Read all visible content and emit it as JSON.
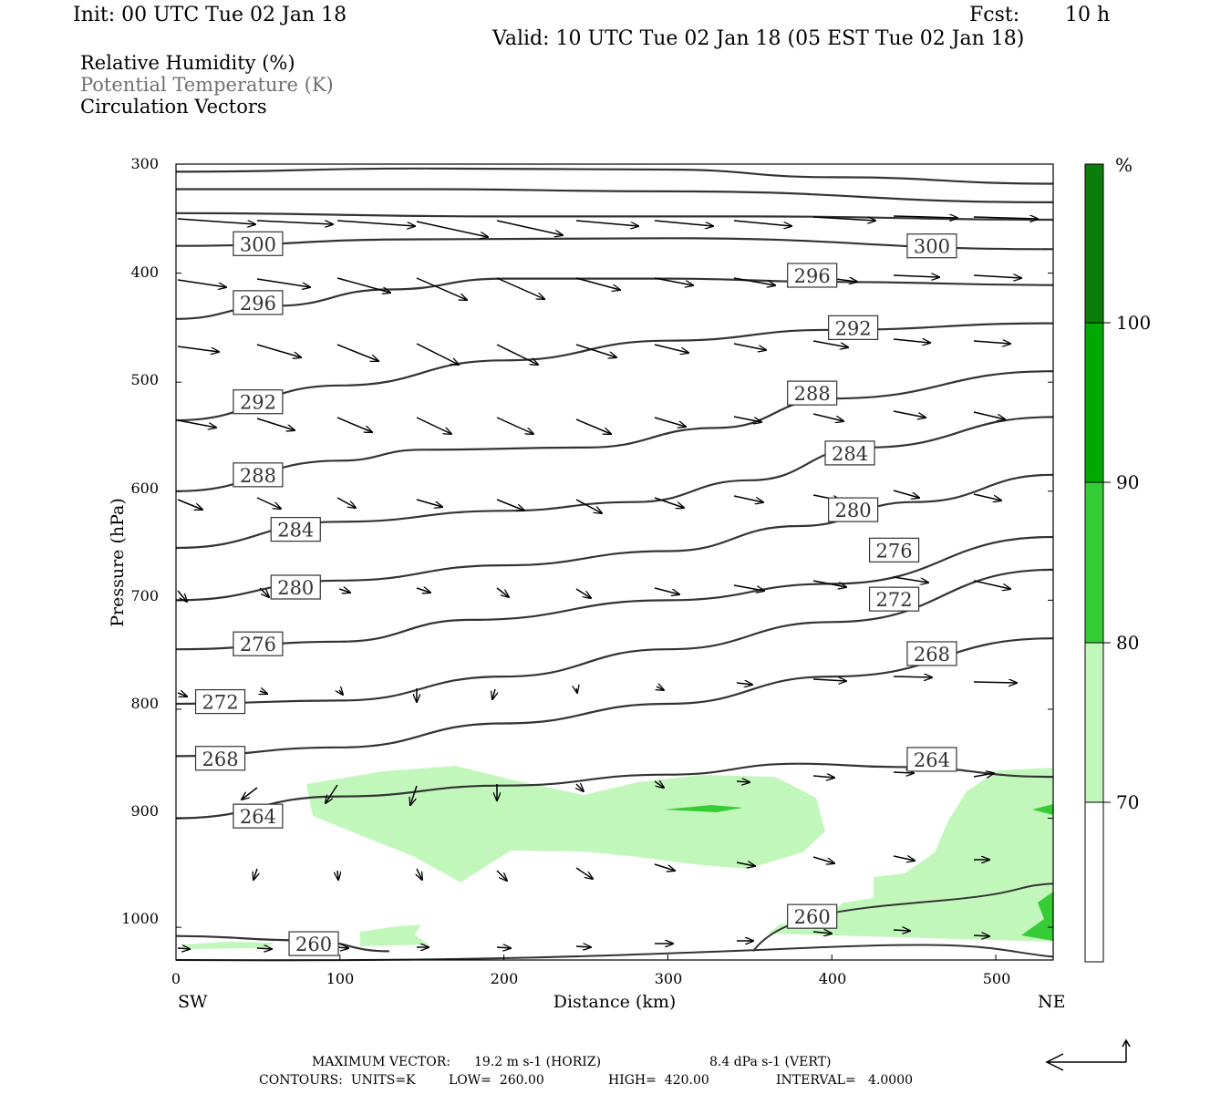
{
  "header": {
    "init": "Init: 00 UTC Tue 02 Jan 18",
    "fcst_label": "Fcst:",
    "fcst_value": "10 h",
    "valid": "Valid: 10 UTC Tue 02 Jan 18 (05 EST Tue 02 Jan 18)"
  },
  "legend": {
    "rh": "Relative Humidity (%)",
    "theta": "Potential Temperature (K)",
    "vectors": "Circulation Vectors"
  },
  "chart_data": {
    "type": "cross-section",
    "xlabel": "Distance (km)",
    "ylabel": "Pressure (hPa)",
    "xlim": [
      0,
      535
    ],
    "ylim": [
      1030,
      300
    ],
    "x_ticks": [
      0,
      100,
      200,
      300,
      400,
      500
    ],
    "y_ticks": [
      300,
      400,
      500,
      600,
      700,
      800,
      900,
      1000
    ],
    "x_end_labels": {
      "left": "SW",
      "right": "NE"
    },
    "theta_contours": [
      {
        "level": 304,
        "label": "",
        "points": [
          [
            0,
            307
          ],
          [
            150,
            304
          ],
          [
            300,
            305
          ],
          [
            400,
            312
          ],
          [
            535,
            318
          ]
        ]
      },
      {
        "level": 302,
        "label": "",
        "points": [
          [
            0,
            323
          ],
          [
            150,
            323
          ],
          [
            300,
            325
          ],
          [
            535,
            335
          ]
        ]
      },
      {
        "level": 300,
        "label": "300",
        "label_at": [
          50,
          373
        ],
        "label2_at": [
          461,
          375
        ],
        "points": [
          [
            0,
            375
          ],
          [
            150,
            369
          ],
          [
            300,
            368
          ],
          [
            535,
            378
          ]
        ]
      },
      {
        "level": 298,
        "label": "",
        "points": [
          [
            0,
            345
          ],
          [
            200,
            348
          ],
          [
            350,
            348
          ],
          [
            535,
            351
          ]
        ]
      },
      {
        "level": 296,
        "label": "296",
        "label_at": [
          50,
          427
        ],
        "label2_at": [
          388,
          402
        ],
        "points": [
          [
            0,
            442
          ],
          [
            60,
            430
          ],
          [
            130,
            415
          ],
          [
            200,
            405
          ],
          [
            300,
            405
          ],
          [
            400,
            408
          ],
          [
            535,
            411
          ]
        ]
      },
      {
        "level": 292,
        "label": "292",
        "label_at": [
          50,
          518
        ],
        "label2_at": [
          413,
          450
        ],
        "points": [
          [
            0,
            535
          ],
          [
            100,
            503
          ],
          [
            200,
            480
          ],
          [
            300,
            462
          ],
          [
            400,
            452
          ],
          [
            535,
            446
          ]
        ]
      },
      {
        "level": 288,
        "label": "288",
        "label_at": [
          50,
          585
        ],
        "label2_at": [
          388,
          510
        ],
        "points": [
          [
            0,
            600
          ],
          [
            100,
            572
          ],
          [
            150,
            562
          ],
          [
            250,
            560
          ],
          [
            330,
            542
          ],
          [
            400,
            515
          ],
          [
            535,
            490
          ]
        ]
      },
      {
        "level": 284,
        "label": "284",
        "label_at": [
          73,
          635
        ],
        "label2_at": [
          411,
          565
        ],
        "points": [
          [
            0,
            652
          ],
          [
            100,
            628
          ],
          [
            200,
            618
          ],
          [
            280,
            610
          ],
          [
            350,
            590
          ],
          [
            420,
            560
          ],
          [
            535,
            532
          ]
        ]
      },
      {
        "level": 280,
        "label": "280",
        "label_at": [
          73,
          688
        ],
        "label2_at": [
          413,
          617
        ],
        "points": [
          [
            0,
            700
          ],
          [
            100,
            682
          ],
          [
            200,
            668
          ],
          [
            300,
            655
          ],
          [
            380,
            632
          ],
          [
            450,
            610
          ],
          [
            535,
            585
          ]
        ]
      },
      {
        "level": 276,
        "label": "276",
        "label_at": [
          50,
          740
        ],
        "label2_at": [
          438,
          654
        ],
        "points": [
          [
            0,
            745
          ],
          [
            100,
            738
          ],
          [
            180,
            718
          ],
          [
            300,
            700
          ],
          [
            400,
            685
          ],
          [
            535,
            642
          ]
        ]
      },
      {
        "level": 272,
        "label": "272",
        "label_at": [
          27,
          793
        ],
        "label2_at": [
          438,
          699
        ],
        "points": [
          [
            0,
            795
          ],
          [
            100,
            792
          ],
          [
            200,
            770
          ],
          [
            300,
            745
          ],
          [
            400,
            720
          ],
          [
            535,
            672
          ]
        ]
      },
      {
        "level": 268,
        "label": "268",
        "label_at": [
          27,
          845
        ],
        "label2_at": [
          461,
          749
        ],
        "points": [
          [
            0,
            843
          ],
          [
            100,
            835
          ],
          [
            200,
            813
          ],
          [
            300,
            795
          ],
          [
            400,
            770
          ],
          [
            535,
            735
          ]
        ]
      },
      {
        "level": 264,
        "label": "264",
        "label_at": [
          50,
          898
        ],
        "label2_at": [
          461,
          846
        ],
        "points": [
          [
            0,
            900
          ],
          [
            100,
            880
          ],
          [
            200,
            870
          ],
          [
            300,
            860
          ],
          [
            380,
            850
          ],
          [
            440,
            853
          ],
          [
            535,
            862
          ]
        ]
      },
      {
        "level": 260,
        "label": "260",
        "label_at": [
          84,
          1015
        ],
        "label2_at": [
          388,
          990
        ],
        "points": [
          [
            0,
            1008
          ],
          [
            80,
            1012
          ],
          [
            130,
            1022
          ]
        ]
      }
    ],
    "rh_shading": {
      "legend_title": "%",
      "levels": [
        70,
        80,
        90,
        100
      ],
      "colors": [
        "#ffffff",
        "#c2f7bb",
        "#7ce870",
        "#35cc35",
        "#00a800",
        "#0a7d0a"
      ]
    },
    "max_vector": {
      "label": "MAXIMUM VECTOR:",
      "horiz": "19.2 m s-1 (HORIZ)",
      "vert": "8.4 dPa s-1 (VERT)"
    },
    "contours_info": {
      "units": "UNITS=K",
      "low": "LOW=",
      "low_val": "260.00",
      "high": "HIGH=",
      "high_val": "420.00",
      "interval": "INTERVAL=",
      "interval_val": "4.0000"
    }
  },
  "colorbar": {
    "labels": [
      "70",
      "80",
      "90",
      "100"
    ],
    "unit": "%"
  }
}
